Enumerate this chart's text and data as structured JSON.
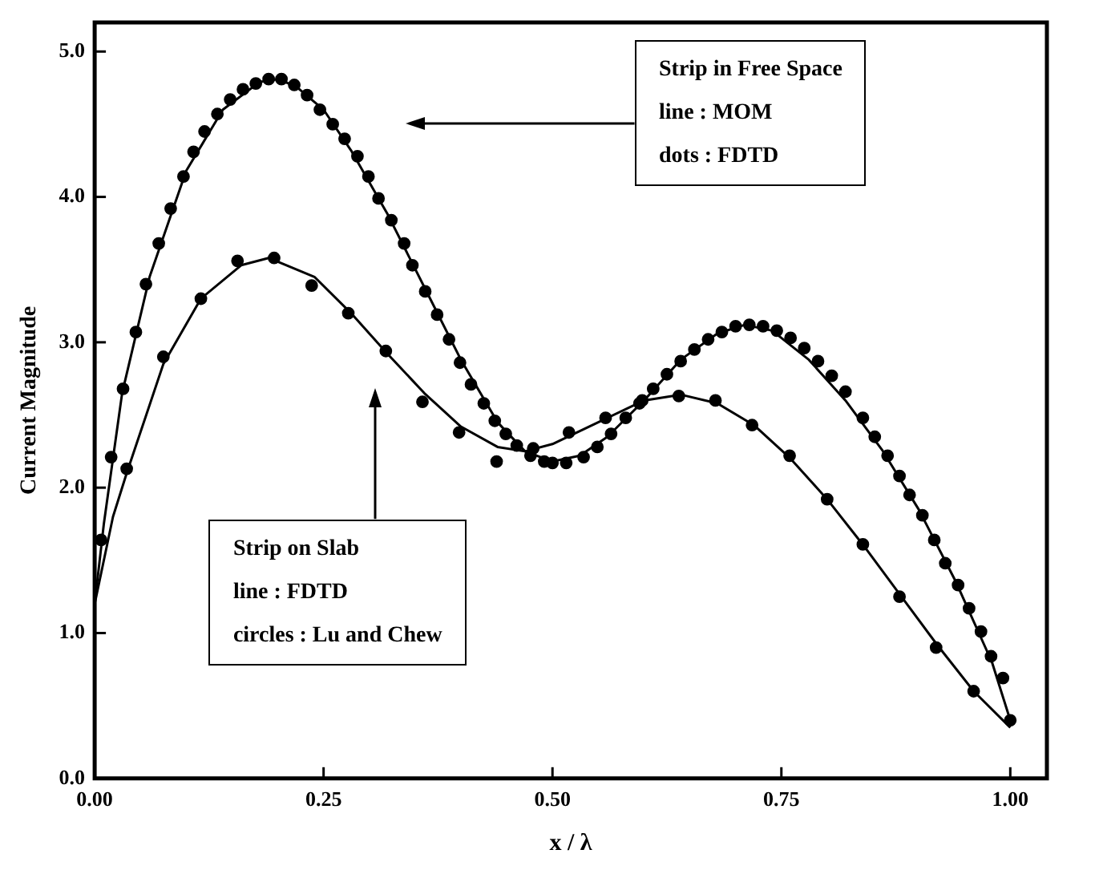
{
  "chart_data": {
    "type": "line",
    "xlabel": "x / λ",
    "ylabel": "Current Magnitude",
    "xlim": [
      0,
      1.04
    ],
    "ylim": [
      0,
      5.2
    ],
    "xticks": [
      {
        "value": 0,
        "label": "0.00"
      },
      0.25,
      {
        "value": 0.5,
        "label": "0.50"
      },
      0.75,
      {
        "value": 1,
        "label": "1.00"
      }
    ],
    "yticks": [
      {
        "value": 0,
        "label": "0.0"
      },
      {
        "value": 1,
        "label": "1.0"
      },
      {
        "value": 2,
        "label": "2.0"
      },
      {
        "value": 3,
        "label": "3.0"
      },
      {
        "value": 4,
        "label": "4.0"
      },
      {
        "value": 5,
        "label": "5.0"
      }
    ],
    "grid": false,
    "legend": false,
    "series": [
      {
        "type": "line",
        "color": "#000000",
        "marker": "none",
        "x": [
          0,
          0.01,
          0.03,
          0.06,
          0.1,
          0.14,
          0.18,
          0.2,
          0.22,
          0.25,
          0.28,
          0.32,
          0.36,
          0.4,
          0.44,
          0.47,
          0.5,
          0.53,
          0.56,
          0.6,
          0.64,
          0.68,
          0.71,
          0.74,
          0.78,
          0.82,
          0.86,
          0.9,
          0.94,
          0.98,
          1.0
        ],
        "values": [
          1.2,
          1.75,
          2.65,
          3.45,
          4.18,
          4.6,
          4.79,
          4.81,
          4.76,
          4.6,
          4.32,
          3.88,
          3.38,
          2.88,
          2.45,
          2.25,
          2.18,
          2.22,
          2.35,
          2.6,
          2.88,
          3.06,
          3.12,
          3.08,
          2.88,
          2.6,
          2.26,
          1.85,
          1.36,
          0.8,
          0.4
        ]
      },
      {
        "type": "scatter",
        "color": "#000000",
        "marker": "circle",
        "x": [
          0.007,
          0.018,
          0.031,
          0.045,
          0.056,
          0.07,
          0.083,
          0.097,
          0.108,
          0.12,
          0.134,
          0.148,
          0.162,
          0.176,
          0.19,
          0.204,
          0.218,
          0.232,
          0.246,
          0.26,
          0.273,
          0.287,
          0.299,
          0.31,
          0.324,
          0.338,
          0.347,
          0.361,
          0.374,
          0.387,
          0.399,
          0.411,
          0.425,
          0.437,
          0.449,
          0.461,
          0.476,
          0.491,
          0.5,
          0.515,
          0.534,
          0.549,
          0.564,
          0.58,
          0.595,
          0.61,
          0.625,
          0.64,
          0.655,
          0.67,
          0.685,
          0.7,
          0.715,
          0.73,
          0.745,
          0.76,
          0.775,
          0.79,
          0.805,
          0.82,
          0.839,
          0.852,
          0.866,
          0.879,
          0.89,
          0.904,
          0.917,
          0.929,
          0.943,
          0.955,
          0.968,
          0.979,
          0.992,
          1.0
        ],
        "values": [
          1.64,
          2.21,
          2.68,
          3.07,
          3.4,
          3.68,
          3.92,
          4.14,
          4.31,
          4.45,
          4.57,
          4.67,
          4.74,
          4.78,
          4.81,
          4.81,
          4.77,
          4.7,
          4.6,
          4.5,
          4.4,
          4.28,
          4.14,
          3.99,
          3.84,
          3.68,
          3.53,
          3.35,
          3.19,
          3.02,
          2.86,
          2.71,
          2.58,
          2.46,
          2.37,
          2.29,
          2.22,
          2.18,
          2.17,
          2.17,
          2.21,
          2.28,
          2.37,
          2.48,
          2.58,
          2.68,
          2.78,
          2.87,
          2.95,
          3.02,
          3.07,
          3.11,
          3.12,
          3.11,
          3.08,
          3.03,
          2.96,
          2.87,
          2.77,
          2.66,
          2.48,
          2.35,
          2.22,
          2.08,
          1.95,
          1.81,
          1.64,
          1.48,
          1.33,
          1.17,
          1.01,
          0.84,
          0.69,
          0.4
        ]
      },
      {
        "type": "line",
        "color": "#000000",
        "marker": "none",
        "x": [
          0,
          0.02,
          0.035,
          0.075,
          0.116,
          0.16,
          0.19,
          0.24,
          0.28,
          0.32,
          0.36,
          0.4,
          0.44,
          0.47,
          0.5,
          0.55,
          0.6,
          0.64,
          0.68,
          0.72,
          0.76,
          0.8,
          0.84,
          0.88,
          0.92,
          0.96,
          1.0
        ],
        "values": [
          1.2,
          1.8,
          2.1,
          2.85,
          3.3,
          3.53,
          3.58,
          3.45,
          3.2,
          2.92,
          2.65,
          2.42,
          2.28,
          2.25,
          2.3,
          2.45,
          2.6,
          2.64,
          2.58,
          2.43,
          2.2,
          1.92,
          1.6,
          1.26,
          0.92,
          0.6,
          0.35
        ]
      },
      {
        "type": "scatter",
        "color": "#000000",
        "marker": "circle",
        "x": [
          0.035,
          0.075,
          0.116,
          0.156,
          0.196,
          0.237,
          0.277,
          0.318,
          0.358,
          0.398,
          0.439,
          0.479,
          0.518,
          0.558,
          0.598,
          0.638,
          0.678,
          0.718,
          0.759,
          0.8,
          0.839,
          0.879,
          0.919,
          0.96
        ],
        "values": [
          2.13,
          2.9,
          3.3,
          3.56,
          3.58,
          3.39,
          3.2,
          2.94,
          2.59,
          2.38,
          2.18,
          2.27,
          2.38,
          2.48,
          2.6,
          2.63,
          2.6,
          2.43,
          2.22,
          1.92,
          1.61,
          1.25,
          0.9,
          0.6
        ]
      }
    ],
    "annotations": [
      "Strip in Free Space\nline : MOM\ndots : FDTD",
      "Strip on Slab\nline : FDTD\ncircles : Lu and Chew"
    ]
  }
}
